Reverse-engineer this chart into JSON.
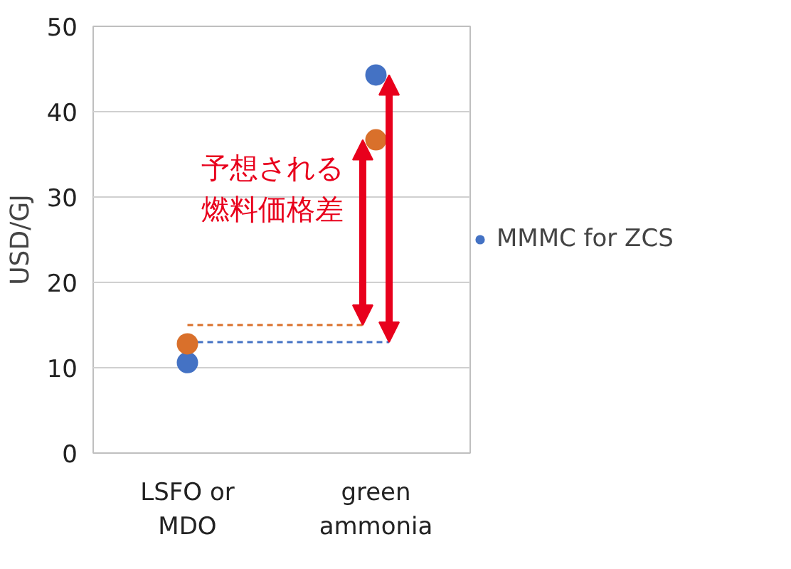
{
  "chart_data": {
    "type": "scatter",
    "ylabel": "USD/GJ",
    "categories": [
      "LSFO or MDO",
      "green ammonia"
    ],
    "series": [
      {
        "name": "MMMC for ZCS",
        "color": "#4472c4",
        "values": [
          10.6,
          44.3
        ]
      },
      {
        "color": "#d9702b",
        "values": [
          12.8,
          36.7
        ]
      }
    ],
    "ylim": [
      0,
      50
    ],
    "yticks": [
      0,
      10,
      20,
      30,
      40,
      50
    ],
    "grid": "y",
    "legend": "right",
    "marker": "circle",
    "ref_lines": [
      {
        "axis": "y",
        "value": 13.0,
        "color": "#4472c4",
        "line_style": "dashed"
      },
      {
        "axis": "y",
        "value": 15.0,
        "color": "#d9702b",
        "line_style": "dashed"
      }
    ],
    "annotations": [
      "予想される燃料価格差"
    ]
  }
}
